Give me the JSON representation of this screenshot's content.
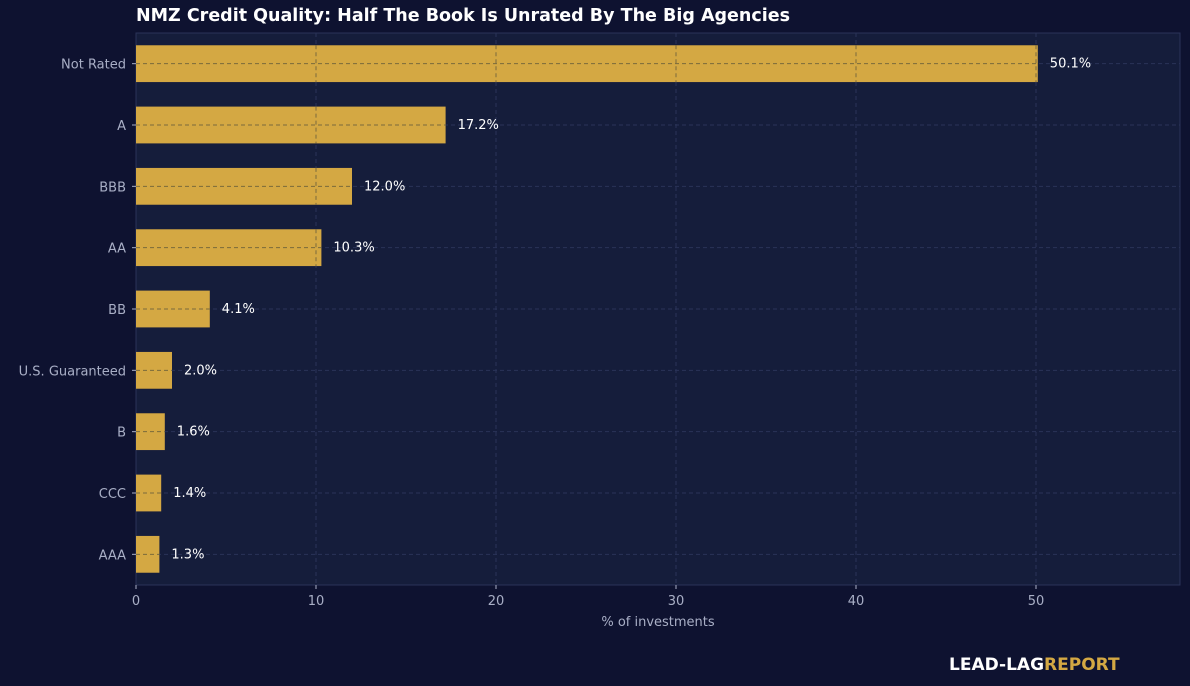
{
  "colors": {
    "page_background": "#0e1230",
    "plot_background": "#151d3b",
    "bar": "#d4a843",
    "grid": "#2a3358",
    "tick_text": "#a9afc6",
    "value_text": "#ffffff",
    "brand_accent": "#d4a843"
  },
  "branding": {
    "lead": "LEAD-LAG",
    "report": "REPORT"
  },
  "chart_data": {
    "type": "bar",
    "orientation": "horizontal",
    "title": "NMZ Credit Quality: Half The Book Is Unrated By The Big Agencies",
    "xlabel": "% of investments",
    "ylabel": "",
    "xlim": [
      0,
      58
    ],
    "xticks": [
      0,
      10,
      20,
      30,
      40,
      50
    ],
    "grid": true,
    "categories": [
      "Not Rated",
      "A",
      "BBB",
      "AA",
      "BB",
      "U.S. Guaranteed",
      "B",
      "CCC",
      "AAA"
    ],
    "values": [
      50.1,
      17.2,
      12.0,
      10.3,
      4.1,
      2.0,
      1.6,
      1.4,
      1.3
    ],
    "value_labels": [
      "50.1%",
      "17.2%",
      "12.0%",
      "10.3%",
      "4.1%",
      "2.0%",
      "1.6%",
      "1.4%",
      "1.3%"
    ]
  }
}
